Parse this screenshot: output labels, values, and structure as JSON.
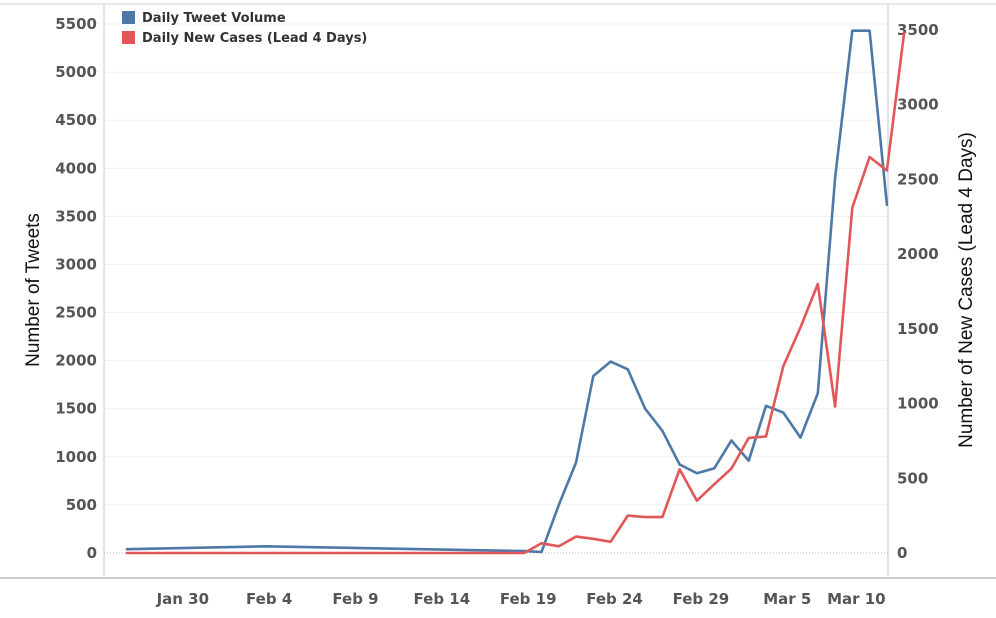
{
  "chart_data": {
    "type": "line",
    "x_tick_labels": [
      "Jan 30",
      "Feb 4",
      "Feb 9",
      "Feb 14",
      "Feb 19",
      "Feb 24",
      "Feb 29",
      "Mar 5",
      "Mar 10"
    ],
    "x_tick_positions": [
      3,
      8,
      13,
      18,
      23,
      28,
      33,
      38,
      42
    ],
    "ylabel": "Number of Tweets",
    "ylabel_right": "Number of New Cases (Lead 4 Days)",
    "ylim": [
      0,
      5500
    ],
    "ylim_right": [
      0,
      3500
    ],
    "y_ticks": [
      "0",
      "500",
      "1000",
      "1500",
      "2000",
      "2500",
      "3000",
      "3500",
      "4000",
      "4500",
      "5000",
      "5500"
    ],
    "y_ticks_right": [
      "0",
      "500",
      "1000",
      "1500",
      "2000",
      "2500",
      "3000",
      "3500"
    ],
    "grid": true,
    "legend": "top-left",
    "series": [
      {
        "name": "Daily Tweet Volume",
        "axis": "left",
        "color": "#4e79a7",
        "points": [
          [
            0,
            40
          ],
          [
            8,
            70
          ],
          [
            23,
            20
          ],
          [
            24,
            10
          ],
          [
            25,
            500
          ],
          [
            26,
            940
          ],
          [
            27,
            1840
          ],
          [
            28,
            1990
          ],
          [
            29,
            1910
          ],
          [
            30,
            1500
          ],
          [
            31,
            1270
          ],
          [
            32,
            920
          ],
          [
            33,
            830
          ],
          [
            34,
            880
          ],
          [
            35,
            1170
          ],
          [
            36,
            960
          ],
          [
            37,
            1530
          ],
          [
            38,
            1460
          ],
          [
            39,
            1200
          ],
          [
            40,
            1660
          ],
          [
            41,
            3900
          ],
          [
            42,
            5430
          ],
          [
            43,
            5430
          ],
          [
            44,
            3620
          ]
        ]
      },
      {
        "name": "Daily New Cases (Lead 4 Days)",
        "axis": "right",
        "color": "#e15759",
        "points": [
          [
            0,
            0
          ],
          [
            23,
            0
          ],
          [
            24,
            65
          ],
          [
            25,
            45
          ],
          [
            26,
            110
          ],
          [
            27,
            95
          ],
          [
            28,
            75
          ],
          [
            29,
            250
          ],
          [
            30,
            240
          ],
          [
            31,
            240
          ],
          [
            32,
            560
          ],
          [
            33,
            350
          ],
          [
            34,
            460
          ],
          [
            35,
            565
          ],
          [
            36,
            770
          ],
          [
            37,
            780
          ],
          [
            38,
            1250
          ],
          [
            39,
            1510
          ],
          [
            40,
            1800
          ],
          [
            41,
            980
          ],
          [
            42,
            2310
          ],
          [
            43,
            2650
          ],
          [
            44,
            2560
          ],
          [
            45,
            3480
          ]
        ]
      }
    ]
  }
}
